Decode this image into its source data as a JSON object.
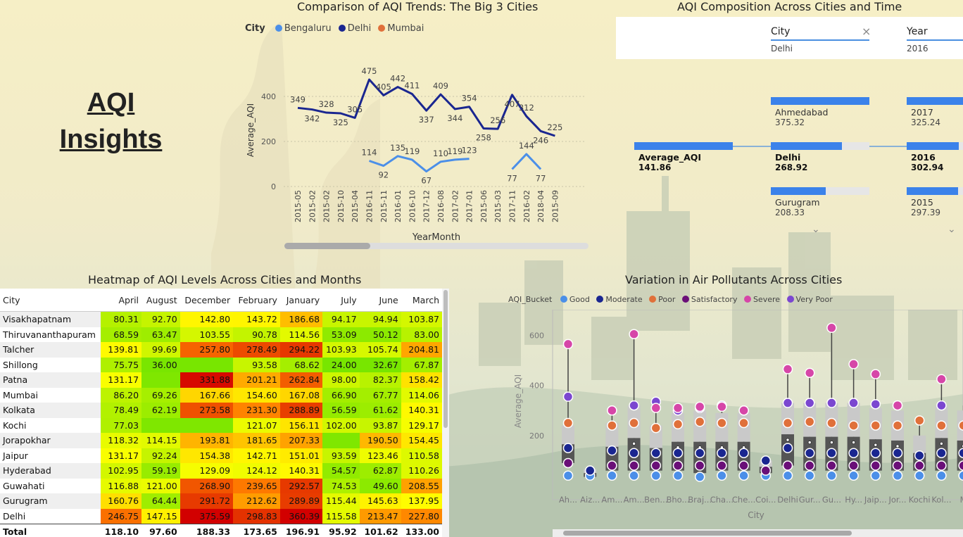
{
  "brand": {
    "line1": "AQI",
    "line2": "Insights"
  },
  "line_chart": {
    "title": "Comparison of AQI Trends: The Big 3 Cities",
    "legend_title": "City",
    "legend": [
      {
        "name": "Bengaluru",
        "color": "#4b8fe8"
      },
      {
        "name": "Delhi",
        "color": "#1a2690"
      },
      {
        "name": "Mumbai",
        "color": "#e0703a"
      }
    ],
    "scrollbar_position": 0.28
  },
  "decomp": {
    "title": "AQI Composition Across Cities and Time",
    "filters": [
      {
        "label": "City",
        "value": "Delhi",
        "clear": "×"
      },
      {
        "label": "Year",
        "value": "2016"
      }
    ],
    "root": {
      "name": "Average_AQI",
      "value": "141.86",
      "bar_fill": 1.0
    },
    "cities": [
      {
        "name": "Ahmedabad",
        "value": "375.32",
        "bar_fill": 1.0
      },
      {
        "name": "Delhi",
        "value": "268.92",
        "bar_fill": 0.72,
        "selected": true
      },
      {
        "name": "Gurugram",
        "value": "208.33",
        "bar_fill": 0.56
      }
    ],
    "years": [
      {
        "name": "2017",
        "value": "325.24",
        "bar_fill": 1.0
      },
      {
        "name": "2016",
        "value": "302.94",
        "bar_fill": 0.93,
        "selected": true
      },
      {
        "name": "2015",
        "value": "297.39",
        "bar_fill": 0.91
      }
    ],
    "chevron": "⌄"
  },
  "heatmap": {
    "title": "Heatmap of AQI Levels Across Cities and Months",
    "columns": [
      "City",
      "April",
      "August",
      "December",
      "February",
      "January",
      "July",
      "June",
      "March"
    ],
    "rows": [
      {
        "city": "Visakhapatnam",
        "values": [
          "80.31",
          "92.70",
          "142.80",
          "143.72",
          "186.68",
          "94.17",
          "94.94",
          "103.87"
        ]
      },
      {
        "city": "Thiruvananthapuram",
        "values": [
          "68.59",
          "63.47",
          "103.55",
          "90.78",
          "114.56",
          "53.09",
          "50.12",
          "83.00"
        ]
      },
      {
        "city": "Talcher",
        "values": [
          "139.81",
          "99.69",
          "257.80",
          "278.49",
          "294.22",
          "103.93",
          "105.74",
          "204.81"
        ]
      },
      {
        "city": "Shillong",
        "values": [
          "75.75",
          "36.00",
          "",
          "93.58",
          "68.62",
          "24.00",
          "32.67",
          "67.87"
        ]
      },
      {
        "city": "Patna",
        "values": [
          "131.17",
          "",
          "331.88",
          "201.21",
          "262.84",
          "98.00",
          "82.37",
          "158.42"
        ]
      },
      {
        "city": "Mumbai",
        "values": [
          "86.20",
          "69.26",
          "167.66",
          "154.60",
          "167.08",
          "66.90",
          "67.77",
          "114.06"
        ]
      },
      {
        "city": "Kolkata",
        "values": [
          "78.49",
          "62.19",
          "273.58",
          "231.30",
          "288.89",
          "56.59",
          "61.62",
          "140.31"
        ]
      },
      {
        "city": "Kochi",
        "values": [
          "77.03",
          "",
          "",
          "121.07",
          "156.11",
          "102.00",
          "93.87",
          "129.17"
        ]
      },
      {
        "city": "Jorapokhar",
        "values": [
          "118.32",
          "114.15",
          "193.81",
          "181.65",
          "207.33",
          "",
          "190.50",
          "154.45"
        ]
      },
      {
        "city": "Jaipur",
        "values": [
          "131.17",
          "92.24",
          "154.38",
          "142.71",
          "151.01",
          "93.59",
          "123.46",
          "110.58"
        ]
      },
      {
        "city": "Hyderabad",
        "values": [
          "102.95",
          "59.19",
          "129.09",
          "124.12",
          "140.31",
          "54.57",
          "62.87",
          "110.26"
        ]
      },
      {
        "city": "Guwahati",
        "values": [
          "116.88",
          "121.00",
          "268.90",
          "239.65",
          "292.57",
          "74.53",
          "49.60",
          "208.55"
        ]
      },
      {
        "city": "Gurugram",
        "values": [
          "160.76",
          "64.44",
          "291.72",
          "212.62",
          "289.89",
          "115.44",
          "145.63",
          "137.95"
        ]
      },
      {
        "city": "Delhi",
        "values": [
          "246.75",
          "147.15",
          "375.59",
          "298.83",
          "360.39",
          "115.58",
          "213.47",
          "227.80"
        ]
      }
    ],
    "heat_levels": [
      [
        80.31,
        92.7,
        142.8,
        143.72,
        186.68,
        94.17,
        94.94,
        103.87
      ],
      [
        68.59,
        63.47,
        103.55,
        90.78,
        114.56,
        53.09,
        50.12,
        83.0
      ],
      [
        139.81,
        99.69,
        257.8,
        278.49,
        294.22,
        103.93,
        105.74,
        204.81
      ],
      [
        75.75,
        36.0,
        20,
        93.58,
        68.62,
        24.0,
        32.67,
        67.87
      ],
      [
        131.17,
        40,
        331.88,
        201.21,
        262.84,
        98.0,
        82.37,
        158.42
      ],
      [
        86.2,
        69.26,
        167.66,
        154.6,
        167.08,
        66.9,
        67.77,
        114.06
      ],
      [
        78.49,
        62.19,
        273.58,
        231.3,
        288.89,
        56.59,
        61.62,
        140.31
      ],
      [
        77.03,
        40,
        40,
        121.07,
        156.11,
        102.0,
        93.87,
        129.17
      ],
      [
        118.32,
        114.15,
        193.81,
        181.65,
        207.33,
        40,
        190.5,
        154.45
      ],
      [
        131.17,
        92.24,
        154.38,
        142.71,
        151.01,
        93.59,
        123.46,
        110.58
      ],
      [
        102.95,
        59.19,
        129.09,
        124.12,
        140.31,
        54.57,
        62.87,
        110.26
      ],
      [
        116.88,
        121.0,
        268.9,
        239.65,
        292.57,
        74.53,
        49.6,
        208.55
      ],
      [
        160.76,
        64.44,
        291.72,
        212.62,
        289.89,
        115.44,
        145.63,
        137.95
      ],
      [
        246.75,
        147.15,
        375.59,
        298.83,
        360.39,
        115.58,
        213.47,
        227.8
      ]
    ],
    "total": {
      "label": "Total",
      "values": [
        "118.10",
        "97.60",
        "188.33",
        "173.65",
        "196.91",
        "95.92",
        "101.62",
        "133.00"
      ]
    }
  },
  "boxplot": {
    "title": "Variation in Air Pollutants Across Cities",
    "legend_title": "AQI_Bucket",
    "legend": [
      {
        "name": "Good",
        "color": "#4b8fe8"
      },
      {
        "name": "Moderate",
        "color": "#1a2690"
      },
      {
        "name": "Poor",
        "color": "#e0703a"
      },
      {
        "name": "Satisfactory",
        "color": "#6a0f78"
      },
      {
        "name": "Severe",
        "color": "#d646a8"
      },
      {
        "name": "Very Poor",
        "color": "#7b47d0"
      }
    ]
  },
  "chart_data": [
    {
      "type": "line",
      "title": "Comparison of AQI Trends: The Big 3 Cities",
      "xlabel": "YearMonth",
      "ylabel": "Average_AQI",
      "ylim": [
        0,
        500
      ],
      "yticks": [
        0,
        200,
        400
      ],
      "categories": [
        "2015-05",
        "2015-02",
        "2015-02",
        "2015-10",
        "2015-04",
        "2016-11",
        "2015-11",
        "2016-01",
        "2016-10",
        "2017-12",
        "2016-08",
        "2017-02",
        "2017-01",
        "2015-06",
        "2015-03",
        "2017-11",
        "2016-02",
        "2018-04",
        "2015-09"
      ],
      "series": [
        {
          "name": "Delhi",
          "color": "#1a2690",
          "values": [
            349,
            342,
            328,
            325,
            305,
            475,
            405,
            442,
            411,
            337,
            409,
            344,
            354,
            258,
            256,
            407,
            312,
            246,
            225
          ]
        },
        {
          "name": "Bengaluru",
          "color": "#4b8fe8",
          "values": [
            null,
            null,
            null,
            null,
            null,
            114,
            92,
            135,
            119,
            67,
            110,
            119,
            123,
            null,
            null,
            77,
            144,
            77,
            null
          ]
        }
      ],
      "grid": true,
      "legend_position": "top"
    },
    {
      "type": "table",
      "title": "Heatmap of AQI Levels Across Cities and Months"
    },
    {
      "type": "scatter",
      "subtype": "box-and-whisker",
      "title": "Variation in Air Pollutants Across Cities",
      "xlabel": "City",
      "ylabel": "Average_AQI",
      "ylim": [
        0,
        680
      ],
      "yticks": [
        200,
        400,
        600
      ],
      "categories": [
        "Ah...",
        "Aiz...",
        "Am...",
        "Am...",
        "Ben...",
        "Bho...",
        "Braj...",
        "Cha...",
        "Che...",
        "Coi...",
        "Delhi",
        "Gur...",
        "Gu...",
        "Hy...",
        "Jaip...",
        "Jor...",
        "Kochi",
        "Kol...",
        "M"
      ],
      "boxes": [
        {
          "q1": 90,
          "q3": 240,
          "min": 75,
          "max": 565,
          "good": 40,
          "moderate": 150,
          "poor": 250,
          "satisfactory": 90,
          "severe": 565,
          "very_poor": 355
        },
        {
          "q1": 35,
          "q3": 65,
          "min": 30,
          "max": 70,
          "good": 40,
          "moderate": 60,
          "poor": null,
          "satisfactory": 60,
          "severe": null,
          "very_poor": null
        },
        {
          "q1": 60,
          "q3": 250,
          "min": 45,
          "max": 305,
          "good": 40,
          "moderate": 140,
          "poor": 240,
          "satisfactory": 80,
          "severe": 300,
          "very_poor": 300
        },
        {
          "q1": 60,
          "q3": 320,
          "min": 45,
          "max": 605,
          "good": 40,
          "moderate": 130,
          "poor": 250,
          "satisfactory": 80,
          "severe": 605,
          "very_poor": 320
        },
        {
          "q1": 60,
          "q3": 240,
          "min": 45,
          "max": 335,
          "good": 40,
          "moderate": 130,
          "poor": 230,
          "satisfactory": 80,
          "severe": 310,
          "very_poor": 335
        },
        {
          "q1": 60,
          "q3": 290,
          "min": 45,
          "max": 310,
          "good": 40,
          "moderate": 130,
          "poor": 245,
          "satisfactory": 80,
          "severe": 310,
          "very_poor": 300
        },
        {
          "q1": 50,
          "q3": 300,
          "min": 40,
          "max": 315,
          "good": 35,
          "moderate": 130,
          "poor": 255,
          "satisfactory": 80,
          "severe": 315,
          "very_poor": 310
        },
        {
          "q1": 60,
          "q3": 290,
          "min": 45,
          "max": 320,
          "good": 40,
          "moderate": 130,
          "poor": 250,
          "satisfactory": 80,
          "severe": 315,
          "very_poor": 320
        },
        {
          "q1": 60,
          "q3": 290,
          "min": 45,
          "max": 300,
          "good": 40,
          "moderate": 130,
          "poor": 250,
          "satisfactory": 80,
          "severe": 300,
          "very_poor": 300
        },
        {
          "q1": 50,
          "q3": 100,
          "min": 40,
          "max": 110,
          "good": 40,
          "moderate": 100,
          "poor": null,
          "satisfactory": 60,
          "severe": null,
          "very_poor": null
        },
        {
          "q1": 80,
          "q3": 330,
          "min": 50,
          "max": 465,
          "good": 40,
          "moderate": 150,
          "poor": 250,
          "satisfactory": 80,
          "severe": 465,
          "very_poor": 330
        },
        {
          "q1": 60,
          "q3": 330,
          "min": 45,
          "max": 450,
          "good": 40,
          "moderate": 130,
          "poor": 255,
          "satisfactory": 80,
          "severe": 450,
          "very_poor": 330
        },
        {
          "q1": 60,
          "q3": 330,
          "min": 45,
          "max": 630,
          "good": 40,
          "moderate": 130,
          "poor": 250,
          "satisfactory": 80,
          "severe": 630,
          "very_poor": 330
        },
        {
          "q1": 60,
          "q3": 330,
          "min": 45,
          "max": 485,
          "good": 40,
          "moderate": 130,
          "poor": 240,
          "satisfactory": 80,
          "severe": 485,
          "very_poor": 330
        },
        {
          "q1": 60,
          "q3": 310,
          "min": 45,
          "max": 445,
          "good": 40,
          "moderate": 130,
          "poor": 240,
          "satisfactory": 80,
          "severe": 445,
          "very_poor": 325
        },
        {
          "q1": 60,
          "q3": 300,
          "min": 45,
          "max": 320,
          "good": 40,
          "moderate": 130,
          "poor": 240,
          "satisfactory": 80,
          "severe": 320,
          "very_poor": 320
        },
        {
          "q1": 60,
          "q3": 200,
          "min": 45,
          "max": 265,
          "good": 40,
          "moderate": 120,
          "poor": 260,
          "satisfactory": 80,
          "severe": null,
          "very_poor": null
        },
        {
          "q1": 60,
          "q3": 320,
          "min": 45,
          "max": 425,
          "good": 40,
          "moderate": 130,
          "poor": 240,
          "satisfactory": 80,
          "severe": 425,
          "very_poor": 320
        },
        {
          "q1": 60,
          "q3": 300,
          "min": 45,
          "max": 320,
          "good": 40,
          "moderate": 130,
          "poor": 240,
          "satisfactory": 80,
          "severe": null,
          "very_poor": null
        }
      ]
    }
  ]
}
